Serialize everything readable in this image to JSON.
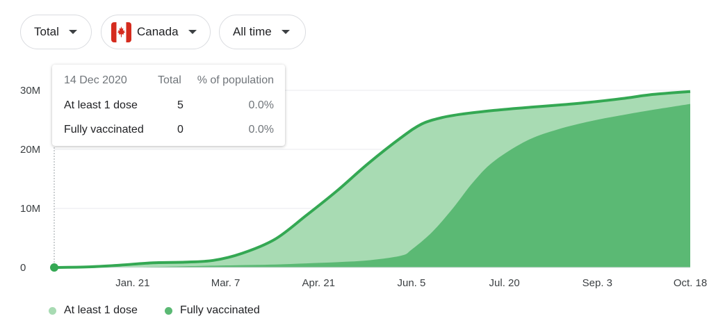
{
  "filters": {
    "metric": "Total",
    "country": "Canada",
    "range": "All time"
  },
  "colors": {
    "at_least_one_dose": "#a8dbb3",
    "fully_vaccinated": "#5bb974",
    "line": "#34a853",
    "grid": "#e8eaed"
  },
  "tooltip": {
    "date": "14 Dec 2020",
    "col_total": "Total",
    "col_pct": "% of population",
    "rows": [
      {
        "label": "At least 1 dose",
        "total": "5",
        "pct": "0.0%"
      },
      {
        "label": "Fully vaccinated",
        "total": "0",
        "pct": "0.0%"
      }
    ]
  },
  "chart_data": {
    "type": "area",
    "title": "",
    "xlabel": "",
    "ylabel": "",
    "x_start": "2020-12-14",
    "x_end": "2021-10-18",
    "ylim": [
      0,
      30000000
    ],
    "y_ticks": [
      {
        "value": 0,
        "label": "0"
      },
      {
        "value": 10000000,
        "label": "10M"
      },
      {
        "value": 20000000,
        "label": "20M"
      },
      {
        "value": 30000000,
        "label": "30M"
      }
    ],
    "x_ticks": [
      {
        "date": "2021-01-21",
        "label": "Jan. 21"
      },
      {
        "date": "2021-03-07",
        "label": "Mar. 7"
      },
      {
        "date": "2021-04-21",
        "label": "Apr. 21"
      },
      {
        "date": "2021-06-05",
        "label": "Jun. 5"
      },
      {
        "date": "2021-07-20",
        "label": "Jul. 20"
      },
      {
        "date": "2021-09-03",
        "label": "Sep. 3"
      },
      {
        "date": "2021-10-18",
        "label": "Oct. 18"
      }
    ],
    "grid": true,
    "legend_position": "bottom-left",
    "highlight_date": "2020-12-14",
    "series": [
      {
        "name": "At least 1 dose",
        "color": "#a8dbb3",
        "points": [
          [
            "2020-12-14",
            0
          ],
          [
            "2020-12-31",
            100000
          ],
          [
            "2021-01-15",
            400000
          ],
          [
            "2021-01-31",
            800000
          ],
          [
            "2021-02-15",
            900000
          ],
          [
            "2021-03-01",
            1200000
          ],
          [
            "2021-03-15",
            2400000
          ],
          [
            "2021-03-31",
            4800000
          ],
          [
            "2021-04-15",
            8800000
          ],
          [
            "2021-04-30",
            13000000
          ],
          [
            "2021-05-15",
            17600000
          ],
          [
            "2021-05-31",
            22000000
          ],
          [
            "2021-06-10",
            24300000
          ],
          [
            "2021-06-20",
            25400000
          ],
          [
            "2021-06-30",
            26000000
          ],
          [
            "2021-07-15",
            26600000
          ],
          [
            "2021-07-31",
            27100000
          ],
          [
            "2021-08-15",
            27500000
          ],
          [
            "2021-08-31",
            28000000
          ],
          [
            "2021-09-15",
            28600000
          ],
          [
            "2021-09-30",
            29300000
          ],
          [
            "2021-10-18",
            29800000
          ]
        ]
      },
      {
        "name": "Fully vaccinated",
        "color": "#5bb974",
        "points": [
          [
            "2020-12-14",
            0
          ],
          [
            "2021-01-15",
            20000
          ],
          [
            "2021-01-31",
            100000
          ],
          [
            "2021-02-15",
            200000
          ],
          [
            "2021-02-28",
            300000
          ],
          [
            "2021-03-15",
            400000
          ],
          [
            "2021-03-31",
            500000
          ],
          [
            "2021-04-15",
            700000
          ],
          [
            "2021-04-30",
            900000
          ],
          [
            "2021-05-15",
            1200000
          ],
          [
            "2021-05-31",
            2000000
          ],
          [
            "2021-06-05",
            3000000
          ],
          [
            "2021-06-15",
            6000000
          ],
          [
            "2021-06-25",
            10000000
          ],
          [
            "2021-07-05",
            14500000
          ],
          [
            "2021-07-15",
            18000000
          ],
          [
            "2021-07-31",
            21500000
          ],
          [
            "2021-08-15",
            23400000
          ],
          [
            "2021-08-31",
            24800000
          ],
          [
            "2021-09-15",
            25800000
          ],
          [
            "2021-09-30",
            26700000
          ],
          [
            "2021-10-18",
            27700000
          ]
        ]
      }
    ]
  }
}
